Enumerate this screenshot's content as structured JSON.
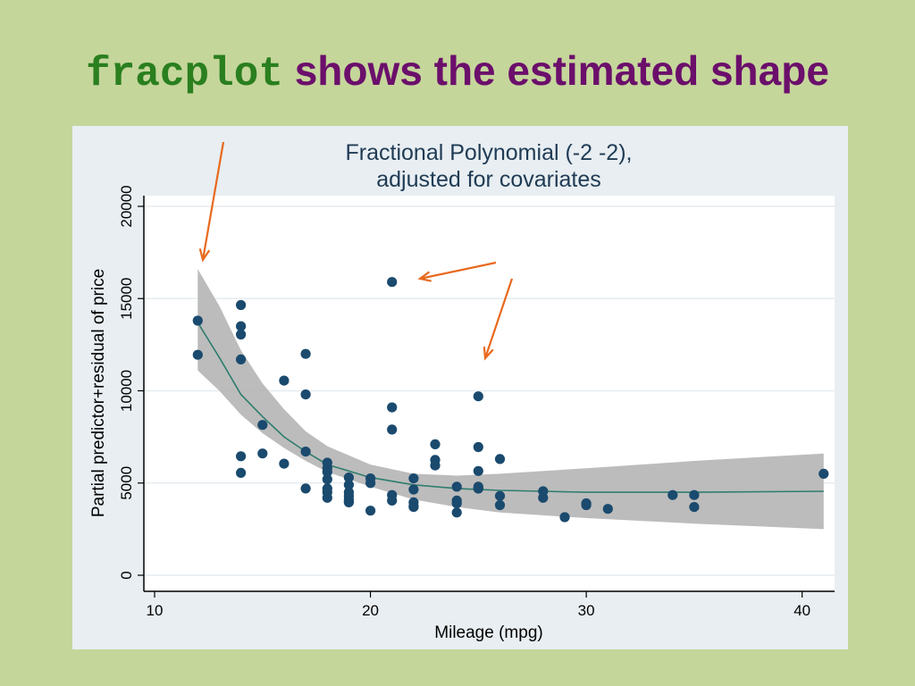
{
  "slide": {
    "title_code": "fracplot",
    "title_rest": " shows the estimated shape"
  },
  "colors": {
    "background": "#c5d69b",
    "title_code": "#2a7f1f",
    "title_rest": "#6b0f6b",
    "points": "#1a4a6e",
    "fit_line": "#2e7d6e",
    "confidence_band": "#b5b5b5",
    "arrows": "#e8691e"
  },
  "chart_data": {
    "type": "scatter",
    "title": "Fractional Polynomial (-2 -2),",
    "subtitle": "adjusted for covariates",
    "xlabel": "Mileage (mpg)",
    "ylabel": "Partial predictor+residual of price",
    "xlim": [
      10,
      42
    ],
    "ylim": [
      0,
      20000
    ],
    "xticks": [
      10,
      20,
      30,
      40
    ],
    "yticks": [
      0,
      5000,
      10000,
      15000,
      20000
    ],
    "grid": true,
    "legend": "none",
    "series": [
      {
        "type": "band",
        "x": [
          12,
          13,
          14,
          15,
          16,
          17,
          18,
          20,
          22,
          24,
          26,
          30,
          35,
          41
        ],
        "upper": [
          16600,
          14600,
          12200,
          10400,
          9000,
          7800,
          7000,
          6000,
          5500,
          5400,
          5500,
          5800,
          6200,
          6600
        ],
        "lower": [
          11100,
          10000,
          8700,
          7700,
          6900,
          6200,
          5600,
          4800,
          4100,
          3700,
          3400,
          3100,
          2800,
          2500
        ]
      },
      {
        "type": "line",
        "x": [
          12,
          13,
          14,
          15,
          16,
          17,
          18,
          20,
          22,
          24,
          26,
          28,
          30,
          35,
          41
        ],
        "y": [
          13700,
          11800,
          9800,
          8600,
          7500,
          6700,
          6000,
          5300,
          4900,
          4700,
          4600,
          4550,
          4500,
          4500,
          4550
        ]
      },
      {
        "type": "scatter",
        "x": [
          12,
          12,
          14,
          14,
          14,
          14,
          14,
          14,
          15,
          15,
          16,
          16,
          17,
          17,
          17,
          17,
          18,
          18,
          18,
          18,
          18,
          18,
          18,
          19,
          19,
          19,
          19,
          19,
          19,
          19,
          20,
          20,
          20,
          21,
          21,
          21,
          21,
          21,
          22,
          22,
          22,
          22,
          22,
          23,
          23,
          23,
          24,
          24,
          24,
          24,
          25,
          25,
          25,
          25,
          25,
          25,
          26,
          26,
          26,
          28,
          28,
          29,
          30,
          30,
          31,
          34,
          35,
          35,
          41
        ],
        "y": [
          13800,
          11950,
          14650,
          13500,
          13050,
          11700,
          6450,
          5550,
          8150,
          6600,
          10550,
          6050,
          12000,
          9800,
          6700,
          4700,
          6100,
          5800,
          5600,
          5200,
          4700,
          4500,
          4200,
          5300,
          4900,
          4500,
          4300,
          4100,
          4000,
          3950,
          5250,
          5000,
          3500,
          15900,
          9100,
          7900,
          4350,
          4050,
          5250,
          4650,
          3950,
          3750,
          3700,
          7100,
          6250,
          5950,
          4800,
          4050,
          3900,
          3400,
          9700,
          6950,
          5650,
          4800,
          4700,
          4700,
          6300,
          4300,
          3800,
          4550,
          4200,
          3150,
          3900,
          3800,
          3600,
          4350,
          4350,
          3700,
          5500
        ]
      }
    ]
  }
}
